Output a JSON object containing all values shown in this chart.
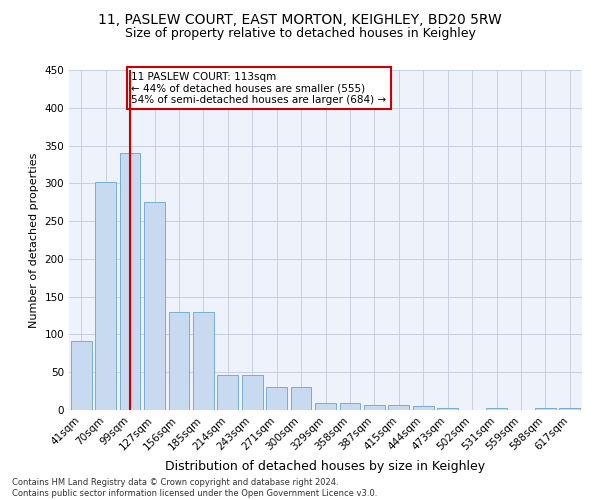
{
  "title1": "11, PASLEW COURT, EAST MORTON, KEIGHLEY, BD20 5RW",
  "title2": "Size of property relative to detached houses in Keighley",
  "xlabel": "Distribution of detached houses by size in Keighley",
  "ylabel": "Number of detached properties",
  "categories": [
    "41sqm",
    "70sqm",
    "99sqm",
    "127sqm",
    "156sqm",
    "185sqm",
    "214sqm",
    "243sqm",
    "271sqm",
    "300sqm",
    "329sqm",
    "358sqm",
    "387sqm",
    "415sqm",
    "444sqm",
    "473sqm",
    "502sqm",
    "531sqm",
    "559sqm",
    "588sqm",
    "617sqm"
  ],
  "values": [
    91,
    302,
    340,
    275,
    130,
    130,
    46,
    46,
    30,
    30,
    9,
    9,
    7,
    7,
    5,
    3,
    0,
    3,
    0,
    3,
    3
  ],
  "bar_color": "#c8daf0",
  "bar_edge_color": "#7aadd4",
  "annotation_line1": "11 PASLEW COURT: 113sqm",
  "annotation_line2": "← 44% of detached houses are smaller (555)",
  "annotation_line3": "54% of semi-detached houses are larger (684) →",
  "annotation_box_color": "white",
  "annotation_box_edge": "#cc0000",
  "red_line_x": 2.0,
  "footnote": "Contains HM Land Registry data © Crown copyright and database right 2024.\nContains public sector information licensed under the Open Government Licence v3.0.",
  "ylim": [
    0,
    450
  ],
  "yticks": [
    0,
    50,
    100,
    150,
    200,
    250,
    300,
    350,
    400,
    450
  ],
  "bg_color": "#eef2fa",
  "grid_color": "#c8cfe0",
  "title1_fontsize": 10,
  "title2_fontsize": 9,
  "xlabel_fontsize": 9,
  "ylabel_fontsize": 8,
  "tick_fontsize": 7.5,
  "annot_fontsize": 7.5,
  "footnote_fontsize": 6
}
